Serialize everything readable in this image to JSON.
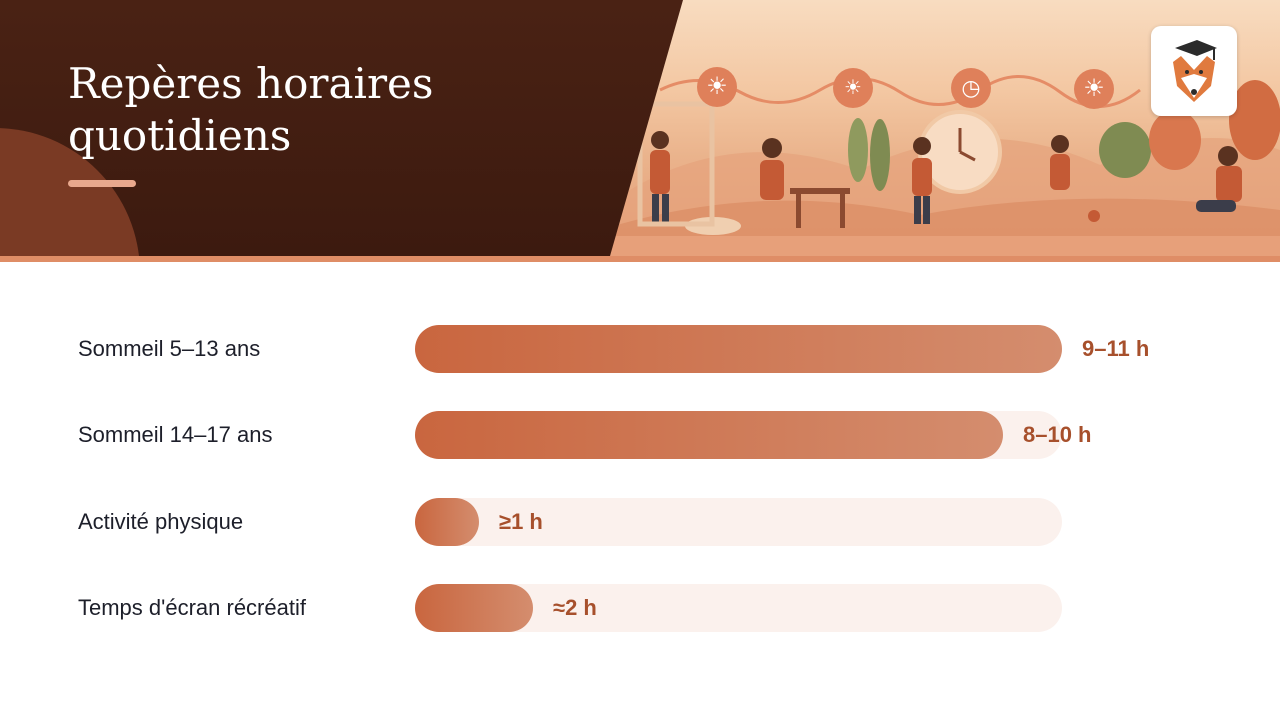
{
  "header": {
    "title": "Repères horaires quotidiens"
  },
  "colors": {
    "accent": "#c9663f",
    "value_text": "#a7502c",
    "track": "#fbf1ed",
    "banner_dark": "#3c1a0f"
  },
  "chart_data": {
    "type": "bar",
    "orientation": "horizontal",
    "max_value": 11,
    "categories": [
      "Sommeil 5–13 ans",
      "Sommeil 14–17 ans",
      "Activité physique",
      "Temps d'écran récréatif"
    ],
    "values": [
      11,
      10,
      1,
      2
    ],
    "value_labels": [
      "9–11 h",
      "8–10 h",
      "≥1 h",
      "≈2 h"
    ]
  }
}
